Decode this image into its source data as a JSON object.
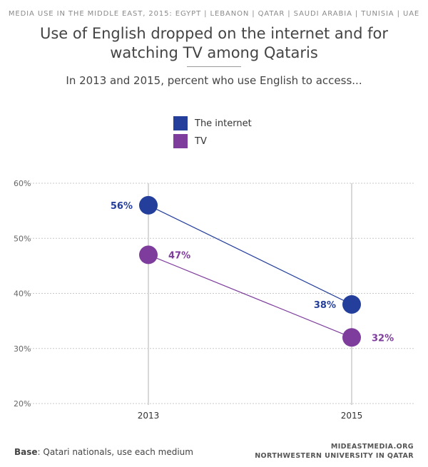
{
  "header": {
    "kicker": "MEDIA USE IN THE MIDDLE EAST, 2015: EGYPT | LEBANON | QATAR | SAUDI ARABIA | TUNISIA | UAE",
    "title": "Use of English dropped on the internet and for watching TV among Qataris",
    "subtitle": "In 2013 and 2015, percent who use English to access..."
  },
  "footer": {
    "base_label": "Base",
    "base_text": ": Qatari nationals, use each medium",
    "source_line1": "MIDEASTMEDIA.ORG",
    "source_line2": "NORTHWESTERN UNIVERSITY IN QATAR"
  },
  "chart_data": {
    "type": "line",
    "x": [
      "2013",
      "2015"
    ],
    "ylim": [
      20,
      60
    ],
    "yticks": [
      20,
      30,
      40,
      50,
      60
    ],
    "ytick_labels": [
      "20%",
      "30%",
      "40%",
      "50%",
      "60%"
    ],
    "grid": true,
    "legend_position": "top-center",
    "series": [
      {
        "name": "The internet",
        "color": "#243f9b",
        "values": [
          56,
          38
        ],
        "labels": [
          "56%",
          "38%"
        ]
      },
      {
        "name": "TV",
        "color": "#7e3d9c",
        "values": [
          47,
          32
        ],
        "labels": [
          "47%",
          "32%"
        ]
      }
    ]
  }
}
